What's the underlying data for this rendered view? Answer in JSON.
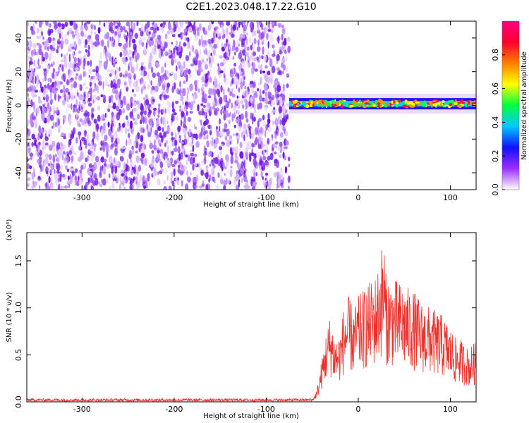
{
  "title": "C2E1.2023.048.17.22.G10",
  "colors": {
    "snr_line": "#e8322d",
    "weak_blob": "#7a1cf0",
    "strong_blob": "#ff1a2e"
  },
  "chart_data": [
    {
      "type": "heatmap",
      "xlabel": "Height of straight line (km)",
      "ylabel": "Frequency (Hz)",
      "xlim": [
        -360,
        128
      ],
      "ylim": [
        -50,
        50
      ],
      "xticks": [
        -300,
        -200,
        -100,
        0,
        100
      ],
      "yticks": [
        -40,
        -20,
        0,
        20,
        40
      ],
      "noise_region_x": [
        -360,
        -75
      ],
      "signal_region_x": [
        -75,
        128
      ],
      "signal_center_hz": 1,
      "colorbar": {
        "label": "Normalized spectral amplitude",
        "range": [
          0,
          1
        ],
        "ticks": [
          "0.0",
          "0.2",
          "0.4",
          "0.6",
          "0.8"
        ],
        "colors": [
          "#ffffff",
          "#9b30ff",
          "#1010ff",
          "#00c8ff",
          "#00ff40",
          "#ffff00",
          "#ff8000",
          "#ff0030",
          "#ff0080"
        ]
      }
    },
    {
      "type": "line",
      "xlabel": "Height of straight line (km)",
      "ylabel": "SNR (10 * v/v)",
      "multiplier": "(x10⁴)",
      "xlim": [
        -360,
        128
      ],
      "ylim": [
        0,
        1.8
      ],
      "xticks": [
        -300,
        -200,
        -100,
        0,
        100
      ],
      "yticks": [
        "0.0",
        "0.5",
        "1.0",
        "1.5"
      ],
      "series": [
        {
          "x": [
            -360,
            -300,
            -200,
            -100,
            -50,
            -45,
            -40,
            -35,
            -30,
            -25,
            -20,
            -15,
            -10,
            -5,
            0,
            10,
            20,
            28,
            30,
            40,
            50,
            60,
            70,
            80,
            90,
            100,
            105,
            110,
            115,
            120,
            125,
            128
          ],
          "y": [
            0.02,
            0.02,
            0.02,
            0.02,
            0.02,
            0.1,
            0.35,
            0.6,
            0.75,
            0.55,
            0.6,
            0.85,
            0.9,
            0.8,
            0.9,
            1.0,
            1.1,
            1.45,
            1.1,
            1.05,
            1.0,
            0.95,
            0.85,
            0.8,
            0.75,
            0.65,
            0.55,
            0.55,
            0.5,
            0.45,
            0.5,
            0.5
          ]
        }
      ]
    }
  ]
}
